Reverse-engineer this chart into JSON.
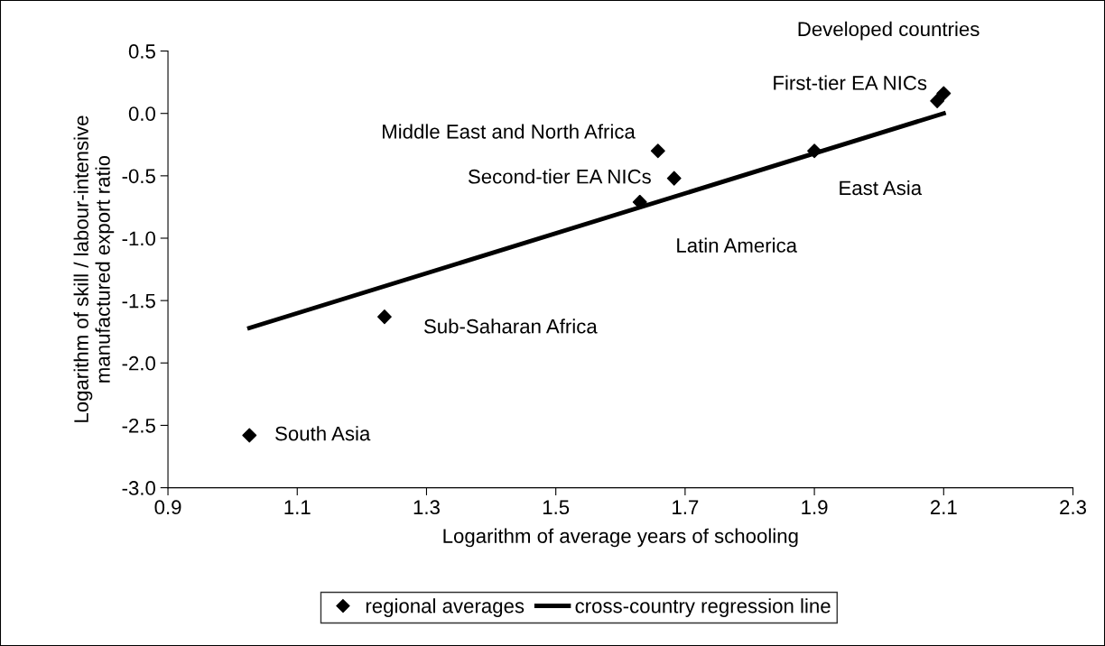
{
  "chart_data": {
    "type": "scatter",
    "xlabel": "Logarithm of average years of schooling",
    "ylabel": "Logarithm of skill / labour-intensive\nmanufactured export ratio",
    "series": [
      {
        "name": "regional averages",
        "color": "#000000",
        "marker": "diamond",
        "x": [
          1.026,
          1.235,
          1.63,
          1.658,
          1.683,
          1.9,
          2.09,
          2.1
        ],
        "values": [
          -2.58,
          -1.63,
          -0.71,
          -0.3,
          -0.52,
          -0.3,
          0.1,
          0.16
        ]
      },
      {
        "name": "cross-country regression line",
        "type": "line",
        "color": "#000000",
        "line_style": "solid",
        "x": [
          1.026,
          2.1
        ],
        "values": [
          -1.72,
          0.0
        ]
      }
    ],
    "annotations": [
      {
        "text": "South Asia",
        "x": 1.026,
        "y": -2.58
      },
      {
        "text": "Sub-Saharan Africa",
        "x": 1.235,
        "y": -1.63
      },
      {
        "text": "Latin America",
        "x": 1.63,
        "y": -0.71
      },
      {
        "text": "Middle East and North Africa",
        "x": 1.658,
        "y": -0.3
      },
      {
        "text": "Second-tier EA NICs",
        "x": 1.683,
        "y": -0.52
      },
      {
        "text": "East Asia",
        "x": 1.9,
        "y": -0.3
      },
      {
        "text": "First-tier EA NICs",
        "x": 2.09,
        "y": 0.1
      },
      {
        "text": "Developed countries",
        "x": 2.1,
        "y": 0.16
      }
    ],
    "xlim": [
      0.9,
      2.3
    ],
    "xticks": [
      0.9,
      1.1,
      1.3,
      1.5,
      1.7,
      1.9,
      2.1,
      2.3
    ],
    "ylim": [
      -3.0,
      0.5
    ],
    "yticks": [
      {
        "value": -3.0,
        "label": "-3.0"
      },
      {
        "value": -2.5,
        "label": "-2.5"
      },
      {
        "value": -2.0,
        "label": "-2.0"
      },
      {
        "value": -1.5,
        "label": "-1.5"
      },
      {
        "value": -1.0,
        "label": "-1.0"
      },
      {
        "value": -0.5,
        "label": "-0.5"
      },
      {
        "value": 0.0,
        "label": "0.0"
      },
      {
        "value": 0.5,
        "label": "0.5"
      }
    ],
    "grid": false,
    "legend": "bottom"
  }
}
